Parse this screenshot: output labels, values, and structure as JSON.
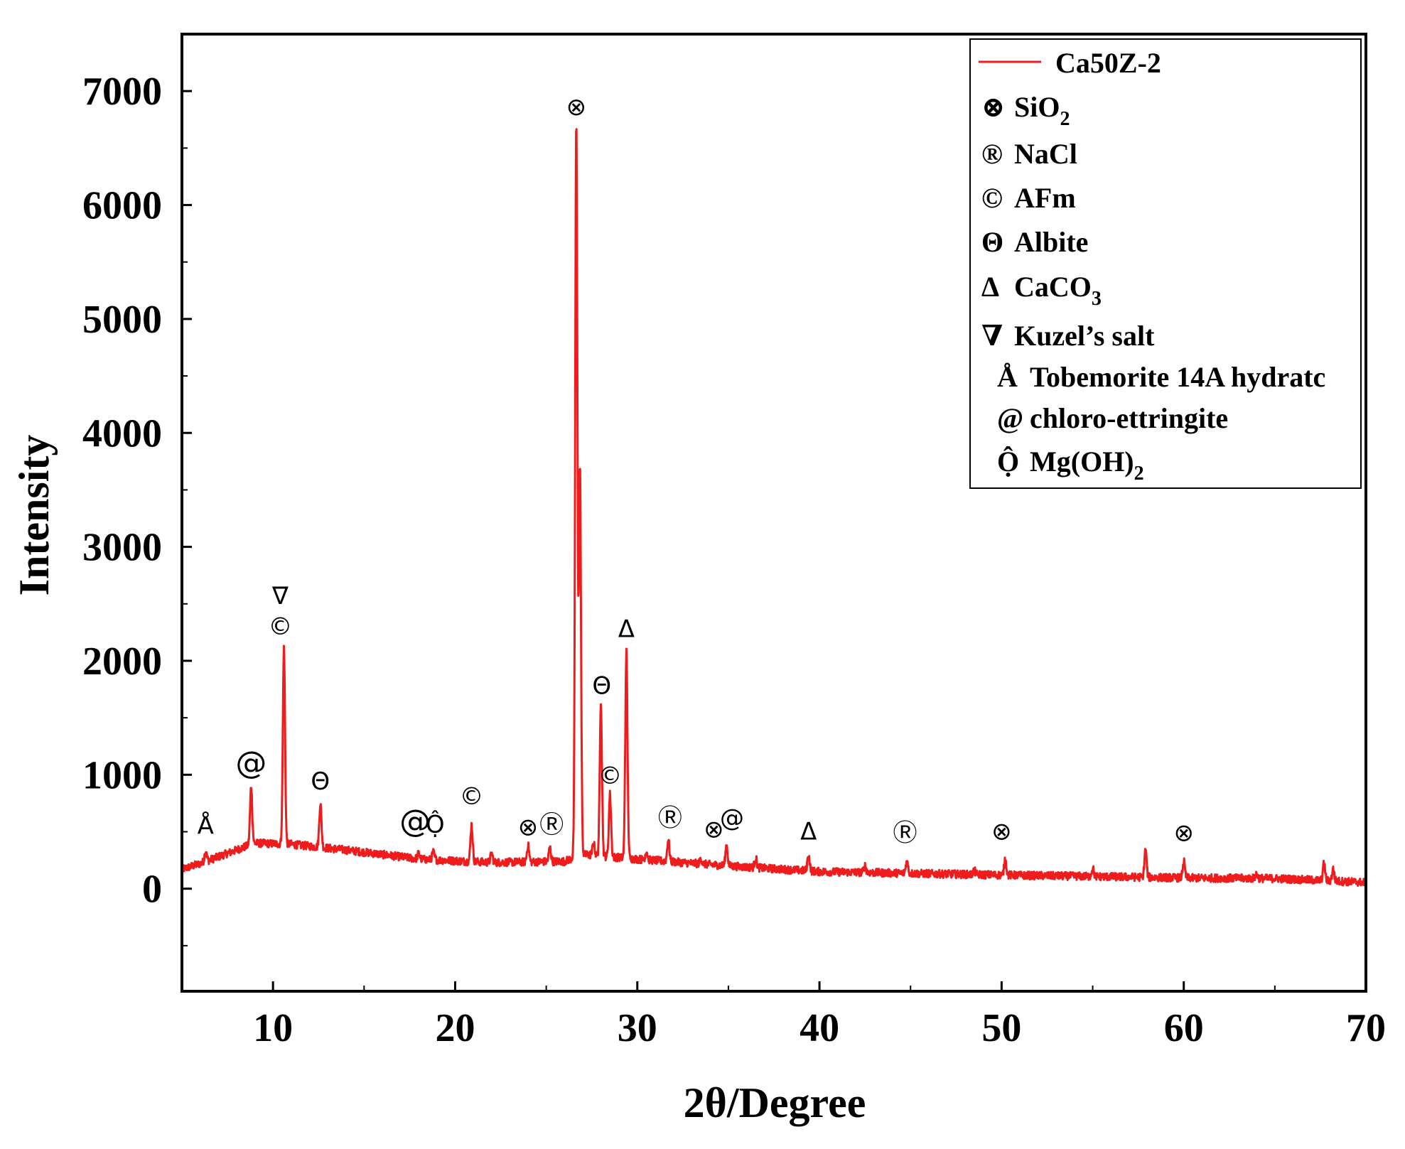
{
  "chart_data": {
    "type": "line",
    "title": "",
    "xlabel": "2θ/Degree",
    "ylabel": "Intensity",
    "xlim": [
      5,
      70
    ],
    "ylim": [
      -900,
      7500
    ],
    "x_ticks": [
      10,
      20,
      30,
      40,
      50,
      60,
      70
    ],
    "y_ticks": [
      0,
      1000,
      2000,
      3000,
      4000,
      5000,
      6000,
      7000
    ],
    "grid": false,
    "legend_position": "top-right",
    "series": [
      {
        "name": "Ca50Z-2",
        "color": "#ee1c1c",
        "baseline": [
          [
            5,
            170
          ],
          [
            6,
            220
          ],
          [
            8,
            340
          ],
          [
            9,
            400
          ],
          [
            11,
            390
          ],
          [
            14,
            340
          ],
          [
            18,
            260
          ],
          [
            22,
            230
          ],
          [
            26,
            240
          ],
          [
            27,
            300
          ],
          [
            30,
            260
          ],
          [
            35,
            200
          ],
          [
            40,
            150
          ],
          [
            50,
            120
          ],
          [
            60,
            95
          ],
          [
            65,
            90
          ],
          [
            70,
            55
          ]
        ],
        "peaks": [
          {
            "x": 6.3,
            "y": 330
          },
          {
            "x": 8.8,
            "y": 900
          },
          {
            "x": 10.6,
            "y": 2110
          },
          {
            "x": 12.6,
            "y": 750
          },
          {
            "x": 18.0,
            "y": 310
          },
          {
            "x": 18.8,
            "y": 320
          },
          {
            "x": 20.9,
            "y": 560
          },
          {
            "x": 22.0,
            "y": 310
          },
          {
            "x": 24.0,
            "y": 380
          },
          {
            "x": 25.2,
            "y": 360
          },
          {
            "x": 26.65,
            "y": 6730
          },
          {
            "x": 26.85,
            "y": 3700
          },
          {
            "x": 27.6,
            "y": 400
          },
          {
            "x": 28.0,
            "y": 1650
          },
          {
            "x": 28.5,
            "y": 830
          },
          {
            "x": 29.4,
            "y": 2080
          },
          {
            "x": 30.5,
            "y": 330
          },
          {
            "x": 31.7,
            "y": 430
          },
          {
            "x": 33.5,
            "y": 260
          },
          {
            "x": 34.9,
            "y": 380
          },
          {
            "x": 36.5,
            "y": 270
          },
          {
            "x": 39.4,
            "y": 300
          },
          {
            "x": 42.5,
            "y": 200
          },
          {
            "x": 44.8,
            "y": 240
          },
          {
            "x": 48.5,
            "y": 160
          },
          {
            "x": 50.2,
            "y": 260
          },
          {
            "x": 55.0,
            "y": 180
          },
          {
            "x": 57.9,
            "y": 340
          },
          {
            "x": 60.0,
            "y": 240
          },
          {
            "x": 64.0,
            "y": 130
          },
          {
            "x": 67.7,
            "y": 220
          },
          {
            "x": 68.2,
            "y": 170
          }
        ]
      }
    ],
    "annotations": [
      {
        "symbol": "Å",
        "x": 6.3,
        "y": 480
      },
      {
        "symbol": "@",
        "x": 8.8,
        "y": 1010
      },
      {
        "symbol": "∇",
        "x": 10.4,
        "y": 2500
      },
      {
        "symbol": "©",
        "x": 10.4,
        "y": 2230
      },
      {
        "symbol": "Θ",
        "x": 12.6,
        "y": 870
      },
      {
        "symbol": "@",
        "x": 17.8,
        "y": 500
      },
      {
        "symbol": "Ộ",
        "x": 18.9,
        "y": 490
      },
      {
        "symbol": "©",
        "x": 20.9,
        "y": 740
      },
      {
        "symbol": "⊗",
        "x": 24.0,
        "y": 470
      },
      {
        "symbol": "Ⓡ",
        "x": 25.3,
        "y": 490
      },
      {
        "symbol": "⊗",
        "x": 26.65,
        "y": 6790
      },
      {
        "symbol": "Θ",
        "x": 28.05,
        "y": 1710
      },
      {
        "symbol": "©",
        "x": 28.5,
        "y": 920
      },
      {
        "symbol": "Δ",
        "x": 29.4,
        "y": 2210
      },
      {
        "symbol": "Ⓡ",
        "x": 31.8,
        "y": 550
      },
      {
        "symbol": "⊗",
        "x": 34.2,
        "y": 450
      },
      {
        "symbol": "@",
        "x": 35.2,
        "y": 550
      },
      {
        "symbol": "Δ",
        "x": 39.4,
        "y": 430
      },
      {
        "symbol": "Ⓡ",
        "x": 44.7,
        "y": 420
      },
      {
        "symbol": "⊗",
        "x": 50.0,
        "y": 430
      },
      {
        "symbol": "⊗",
        "x": 60.0,
        "y": 420
      }
    ],
    "legend": [
      {
        "type": "line",
        "label": "Ca50Z-2"
      },
      {
        "symbol": "⊗",
        "label": "SiO",
        "sub": "2"
      },
      {
        "symbol": "®",
        "label": "NaCl",
        "sub": ""
      },
      {
        "symbol": "©",
        "label": "AFm",
        "sub": ""
      },
      {
        "symbol": "Θ",
        "label": "Albite",
        "sub": ""
      },
      {
        "symbol": "Δ",
        "label": "CaCO",
        "sub": "3"
      },
      {
        "symbol": "∇",
        "label": "Kuzel’s salt",
        "sub": ""
      },
      {
        "symbol": "Å",
        "label": "Tobemorite 14A hydratc",
        "sub": ""
      },
      {
        "symbol": "@",
        "label": "chloro-ettringite",
        "sub": ""
      },
      {
        "symbol": "Ộ",
        "label": "Mg(OH)",
        "sub": "2"
      }
    ]
  }
}
